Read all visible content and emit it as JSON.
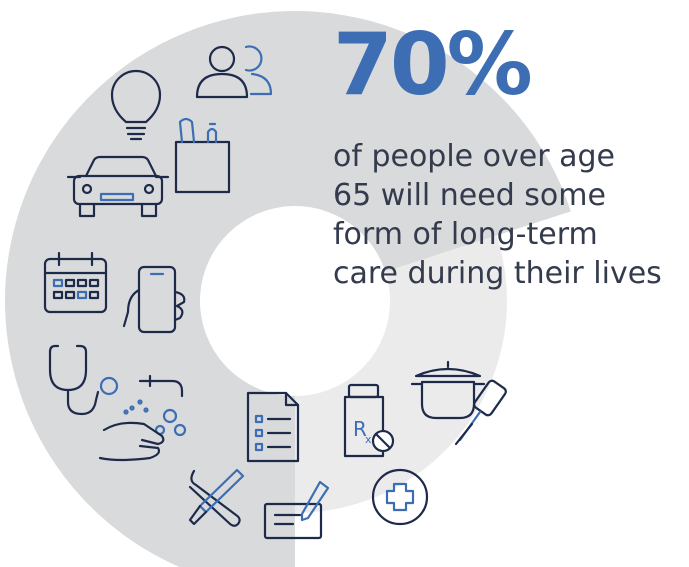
{
  "chart_data": {
    "type": "pie",
    "style": "donut",
    "slices": [
      {
        "label": "will need some form of long-term care",
        "value": 70,
        "color": "#d9dadb"
      },
      {
        "label": "remainder",
        "value": 30,
        "color": "#ebebec"
      }
    ],
    "headline_value": "70%",
    "caption_lines": [
      "of people over age",
      "65 will need some",
      "form of long-term",
      "care during their lives"
    ]
  },
  "colors": {
    "accent": "#3d6eb4",
    "text": "#333b4d",
    "icon_stroke": "#1e2a4a",
    "slice_major": "#d9dadb",
    "slice_minor": "#ebebec"
  },
  "icons": [
    "people-icon",
    "lightbulb-icon",
    "grocery-bag-icon",
    "car-icon",
    "calendar-icon",
    "smartphone-icon",
    "stethoscope-icon",
    "hand-washing-icon",
    "document-checklist-icon",
    "prescription-bottle-icon",
    "cooking-pot-icon",
    "spatula-icon",
    "tools-icon",
    "check-signing-icon",
    "medical-cross-icon"
  ]
}
